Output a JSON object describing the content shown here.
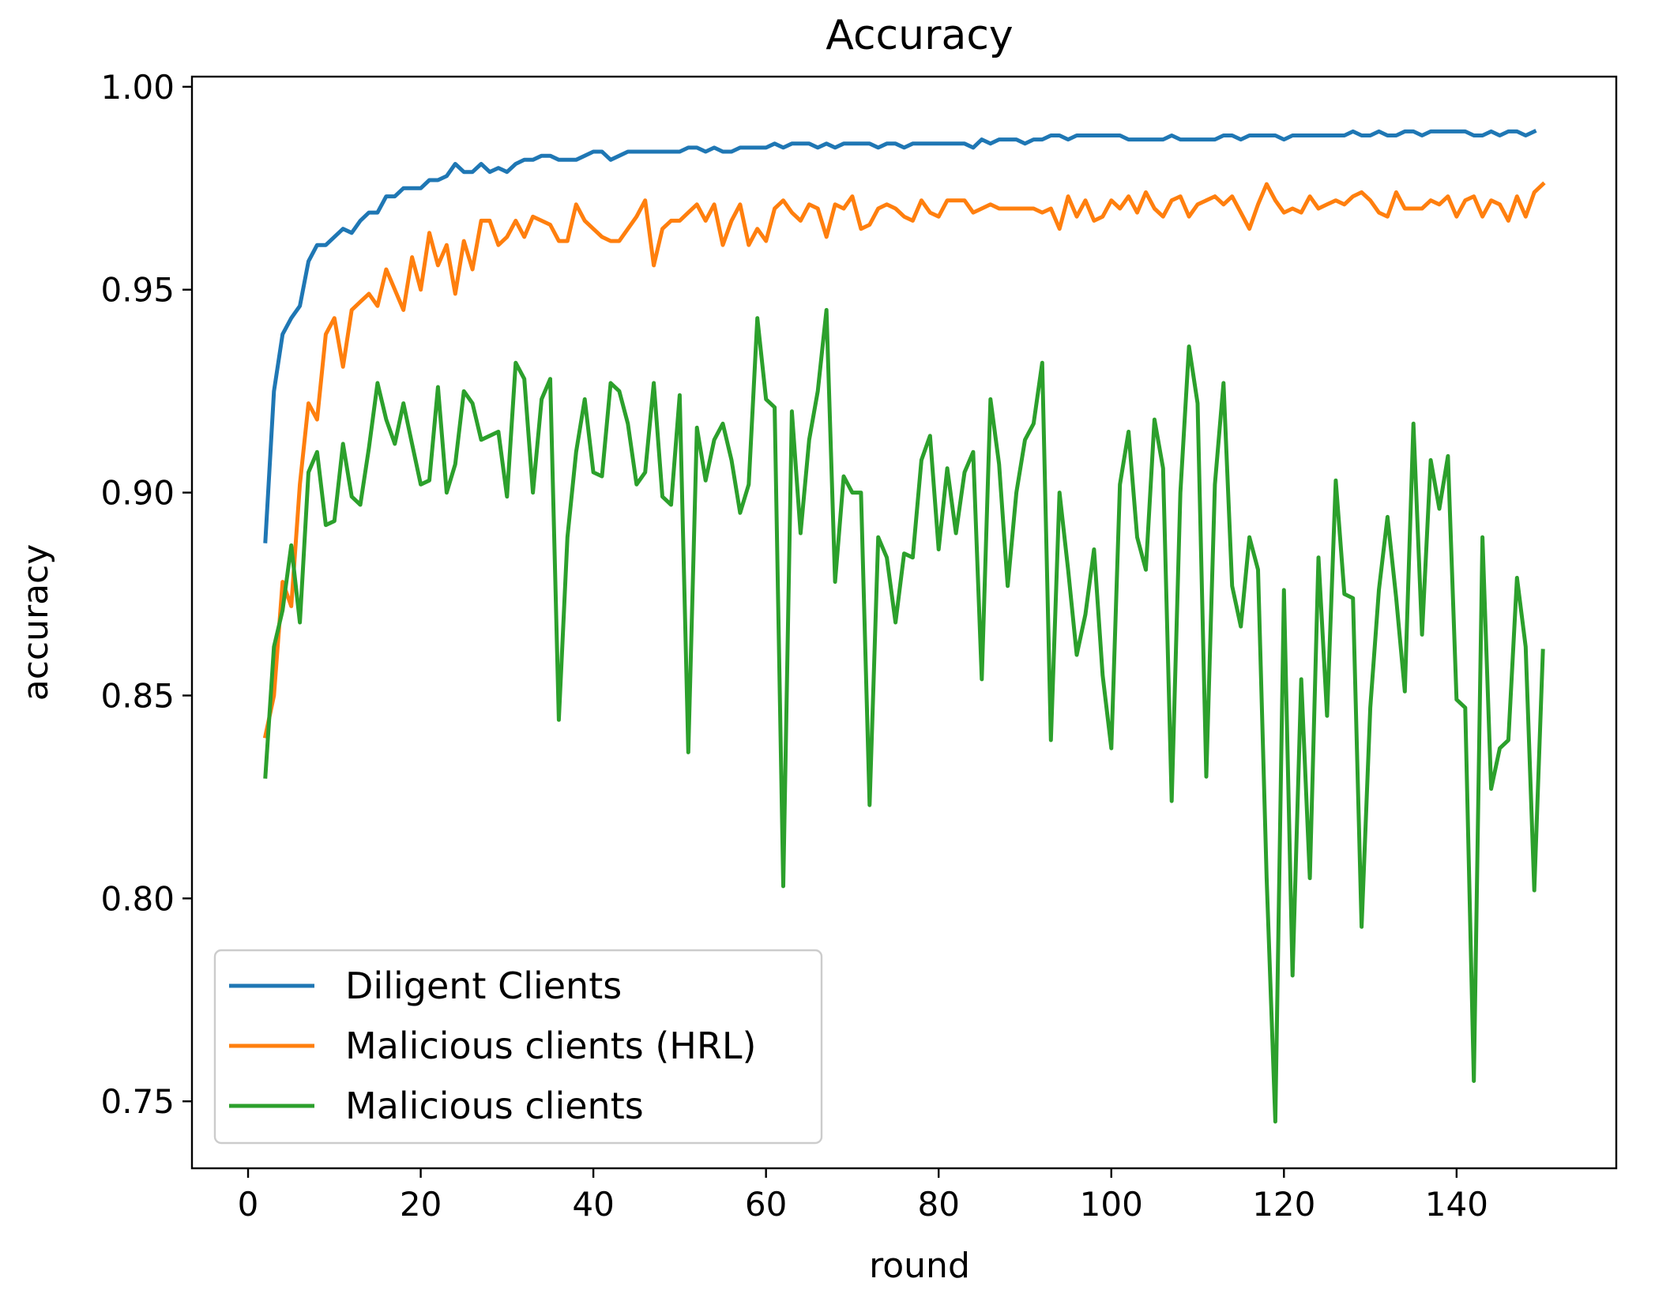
{
  "chart_data": {
    "type": "line",
    "title": "Accuracy",
    "xlabel": "round",
    "ylabel": "accuracy",
    "xlim": [
      -6.5,
      158.5
    ],
    "ylim": [
      0.7335,
      1.0025
    ],
    "xticks": [
      0,
      20,
      40,
      60,
      80,
      100,
      120,
      140
    ],
    "yticks": [
      0.75,
      0.8,
      0.85,
      0.9,
      0.95,
      1.0
    ],
    "ytick_labels": [
      "0.75",
      "0.80",
      "0.85",
      "0.90",
      "0.95",
      "1.00"
    ],
    "grid": false,
    "legend_position": "lower-left",
    "x_start": 2,
    "series": [
      {
        "name": "Diligent Clients",
        "color": "#1f77b4",
        "values": [
          0.888,
          0.925,
          0.939,
          0.943,
          0.946,
          0.957,
          0.961,
          0.961,
          0.963,
          0.965,
          0.964,
          0.967,
          0.969,
          0.969,
          0.973,
          0.973,
          0.975,
          0.975,
          0.975,
          0.977,
          0.977,
          0.978,
          0.981,
          0.979,
          0.979,
          0.981,
          0.979,
          0.98,
          0.979,
          0.981,
          0.982,
          0.982,
          0.983,
          0.983,
          0.982,
          0.982,
          0.982,
          0.983,
          0.984,
          0.984,
          0.982,
          0.983,
          0.984,
          0.984,
          0.984,
          0.984,
          0.984,
          0.984,
          0.984,
          0.985,
          0.985,
          0.984,
          0.985,
          0.984,
          0.984,
          0.985,
          0.985,
          0.985,
          0.985,
          0.986,
          0.985,
          0.986,
          0.986,
          0.986,
          0.985,
          0.986,
          0.985,
          0.986,
          0.986,
          0.986,
          0.986,
          0.985,
          0.986,
          0.986,
          0.985,
          0.986,
          0.986,
          0.986,
          0.986,
          0.986,
          0.986,
          0.986,
          0.985,
          0.987,
          0.986,
          0.987,
          0.987,
          0.987,
          0.986,
          0.987,
          0.987,
          0.988,
          0.988,
          0.987,
          0.988,
          0.988,
          0.988,
          0.988,
          0.988,
          0.988,
          0.987,
          0.987,
          0.987,
          0.987,
          0.987,
          0.988,
          0.987,
          0.987,
          0.987,
          0.987,
          0.987,
          0.988,
          0.988,
          0.987,
          0.988,
          0.988,
          0.988,
          0.988,
          0.987,
          0.988,
          0.988,
          0.988,
          0.988,
          0.988,
          0.988,
          0.988,
          0.989,
          0.988,
          0.988,
          0.989,
          0.988,
          0.988,
          0.989,
          0.989,
          0.988,
          0.989,
          0.989,
          0.989,
          0.989,
          0.989,
          0.988,
          0.988,
          0.989,
          0.988,
          0.989,
          0.989,
          0.988,
          0.989
        ]
      },
      {
        "name": "Malicious clients (HRL)",
        "color": "#ff7f0e",
        "values": [
          0.84,
          0.85,
          0.878,
          0.872,
          0.902,
          0.922,
          0.918,
          0.939,
          0.943,
          0.931,
          0.945,
          0.947,
          0.949,
          0.946,
          0.955,
          0.95,
          0.945,
          0.958,
          0.95,
          0.964,
          0.956,
          0.961,
          0.949,
          0.962,
          0.955,
          0.967,
          0.967,
          0.961,
          0.963,
          0.967,
          0.963,
          0.968,
          0.967,
          0.966,
          0.962,
          0.962,
          0.971,
          0.967,
          0.965,
          0.963,
          0.962,
          0.962,
          0.965,
          0.968,
          0.972,
          0.956,
          0.965,
          0.967,
          0.967,
          0.969,
          0.971,
          0.967,
          0.971,
          0.961,
          0.967,
          0.971,
          0.961,
          0.965,
          0.962,
          0.97,
          0.972,
          0.969,
          0.967,
          0.971,
          0.97,
          0.963,
          0.971,
          0.97,
          0.973,
          0.965,
          0.966,
          0.97,
          0.971,
          0.97,
          0.968,
          0.967,
          0.972,
          0.969,
          0.968,
          0.972,
          0.972,
          0.972,
          0.969,
          0.97,
          0.971,
          0.97,
          0.97,
          0.97,
          0.97,
          0.97,
          0.969,
          0.97,
          0.965,
          0.973,
          0.968,
          0.972,
          0.967,
          0.968,
          0.972,
          0.97,
          0.973,
          0.969,
          0.974,
          0.97,
          0.968,
          0.972,
          0.973,
          0.968,
          0.971,
          0.972,
          0.973,
          0.971,
          0.973,
          0.969,
          0.965,
          0.971,
          0.976,
          0.972,
          0.969,
          0.97,
          0.969,
          0.973,
          0.97,
          0.971,
          0.972,
          0.971,
          0.973,
          0.974,
          0.972,
          0.969,
          0.968,
          0.974,
          0.97,
          0.97,
          0.97,
          0.972,
          0.971,
          0.973,
          0.968,
          0.972,
          0.973,
          0.968,
          0.972,
          0.971,
          0.967,
          0.973,
          0.968,
          0.974,
          0.976
        ]
      },
      {
        "name": "Malicious clients",
        "color": "#2ca02c",
        "values": [
          0.83,
          0.862,
          0.871,
          0.887,
          0.868,
          0.905,
          0.91,
          0.892,
          0.893,
          0.912,
          0.899,
          0.897,
          0.911,
          0.927,
          0.918,
          0.912,
          0.922,
          0.912,
          0.902,
          0.903,
          0.926,
          0.9,
          0.907,
          0.925,
          0.922,
          0.913,
          0.914,
          0.915,
          0.899,
          0.932,
          0.928,
          0.9,
          0.923,
          0.928,
          0.844,
          0.889,
          0.91,
          0.923,
          0.905,
          0.904,
          0.927,
          0.925,
          0.917,
          0.902,
          0.905,
          0.927,
          0.899,
          0.897,
          0.924,
          0.836,
          0.916,
          0.903,
          0.913,
          0.917,
          0.908,
          0.895,
          0.902,
          0.943,
          0.923,
          0.921,
          0.803,
          0.92,
          0.89,
          0.913,
          0.925,
          0.945,
          0.878,
          0.904,
          0.9,
          0.9,
          0.823,
          0.889,
          0.884,
          0.868,
          0.885,
          0.884,
          0.908,
          0.914,
          0.886,
          0.906,
          0.89,
          0.905,
          0.91,
          0.854,
          0.923,
          0.907,
          0.877,
          0.9,
          0.913,
          0.917,
          0.932,
          0.839,
          0.9,
          0.881,
          0.86,
          0.87,
          0.886,
          0.855,
          0.837,
          0.902,
          0.915,
          0.889,
          0.881,
          0.918,
          0.906,
          0.824,
          0.9,
          0.936,
          0.922,
          0.83,
          0.902,
          0.927,
          0.877,
          0.867,
          0.889,
          0.881,
          0.805,
          0.745,
          0.876,
          0.781,
          0.854,
          0.805,
          0.884,
          0.845,
          0.903,
          0.875,
          0.874,
          0.793,
          0.847,
          0.876,
          0.894,
          0.874,
          0.851,
          0.917,
          0.865,
          0.908,
          0.896,
          0.909,
          0.849,
          0.847,
          0.755,
          0.889,
          0.827,
          0.837,
          0.839,
          0.879,
          0.862,
          0.802,
          0.861
        ]
      }
    ]
  }
}
